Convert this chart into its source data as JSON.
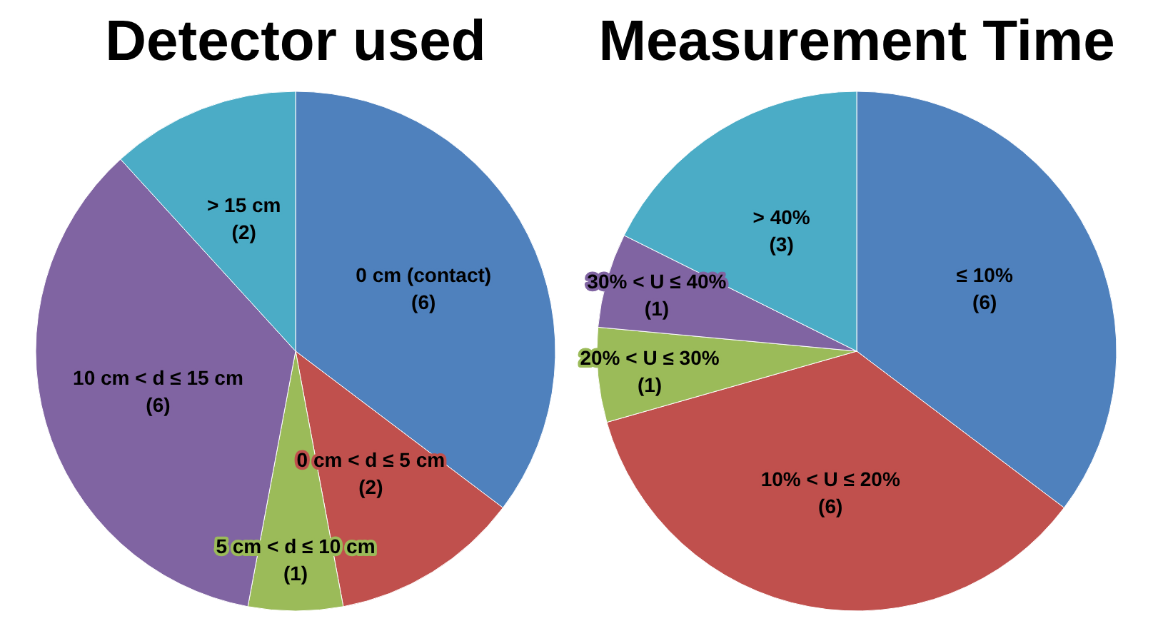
{
  "chart_data": [
    {
      "type": "pie",
      "title": "Detector used",
      "categories": [
        "0 cm (contact)",
        "0 cm < d ≤ 5 cm",
        "5 cm < d ≤ 10 cm",
        "10 cm < d ≤ 15 cm",
        "> 15 cm"
      ],
      "values": [
        6,
        2,
        1,
        6,
        2
      ],
      "value_labels": [
        "(6)",
        "(2)",
        "(1)",
        "(6)",
        "(2)"
      ],
      "colors": [
        "#4f81bd",
        "#c0504d",
        "#9bbb59",
        "#8064a2",
        "#4bacc6"
      ]
    },
    {
      "type": "pie",
      "title": "Measurement Time",
      "categories": [
        "≤ 10%",
        "10% < U ≤ 20%",
        "20% < U ≤ 30%",
        "30% < U ≤ 40%",
        "> 40%"
      ],
      "values": [
        6,
        6,
        1,
        1,
        3
      ],
      "value_labels": [
        "(6)",
        "(6)",
        "(1)",
        "(1)",
        "(3)"
      ],
      "colors": [
        "#4f81bd",
        "#c0504d",
        "#9bbb59",
        "#8064a2",
        "#4bacc6"
      ]
    }
  ]
}
